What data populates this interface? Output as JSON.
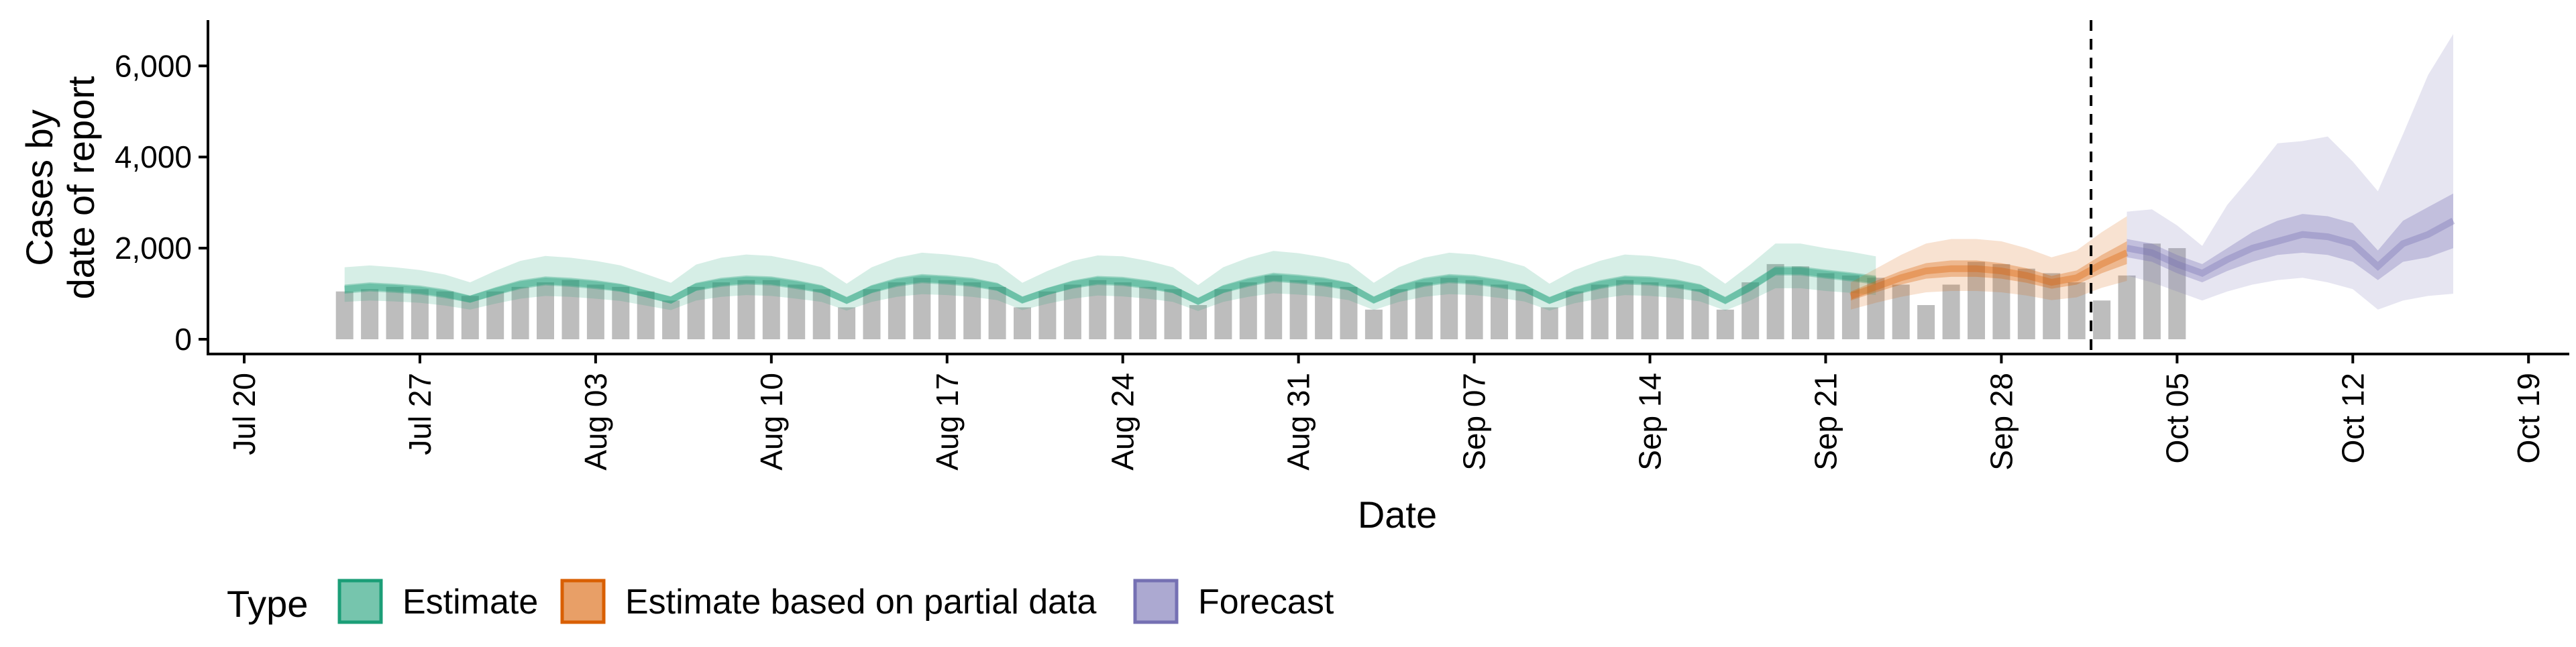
{
  "chart_data": {
    "type": "area",
    "xlabel": "Date",
    "ylabel": [
      "Cases by",
      "date of report"
    ],
    "ylim": [
      0,
      7000
    ],
    "xlim": [
      "2020-07-18",
      "2020-10-20"
    ],
    "y_ticks": [
      0,
      2000,
      4000,
      6000
    ],
    "y_tick_labels": [
      "0",
      "2,000",
      "4,000",
      "6,000"
    ],
    "x_ticks": [
      "2020-07-20",
      "2020-07-27",
      "2020-08-03",
      "2020-08-10",
      "2020-08-17",
      "2020-08-24",
      "2020-08-31",
      "2020-09-07",
      "2020-09-14",
      "2020-09-21",
      "2020-09-28",
      "2020-10-05",
      "2020-10-12",
      "2020-10-19"
    ],
    "x_tick_labels": [
      "Jul 20",
      "Jul 27",
      "Aug 03",
      "Aug 10",
      "Aug 17",
      "Aug 24",
      "Aug 31",
      "Sep 07",
      "Sep 14",
      "Sep 21",
      "Sep 28",
      "Oct 05",
      "Oct 12",
      "Oct 19"
    ],
    "forecast_date": "2020-10-02",
    "grid": false,
    "legend": {
      "title": "Type",
      "position": "bottom",
      "entries": [
        {
          "label": "Estimate",
          "color": "#1b9e77"
        },
        {
          "label": "Estimate based on partial data",
          "color": "#d95f02"
        },
        {
          "label": "Forecast",
          "color": "#7570b3"
        }
      ]
    },
    "reported_cases": {
      "color": "#bdbdbd",
      "start": "2020-07-24",
      "values": [
        1050,
        1100,
        1150,
        1100,
        1050,
        950,
        1050,
        1150,
        1250,
        1300,
        1200,
        1150,
        1050,
        850,
        1150,
        1250,
        1300,
        1300,
        1200,
        1100,
        700,
        1100,
        1250,
        1350,
        1300,
        1250,
        1150,
        700,
        1050,
        1200,
        1300,
        1250,
        1150,
        1100,
        750,
        1100,
        1250,
        1400,
        1300,
        1250,
        1150,
        650,
        1100,
        1250,
        1350,
        1300,
        1200,
        1100,
        700,
        1050,
        1200,
        1300,
        1250,
        1200,
        1100,
        650,
        1250,
        1650,
        1600,
        1450,
        1400,
        1350,
        1200,
        750,
        1200,
        1700,
        1650,
        1550,
        1450,
        1250,
        850,
        1400,
        2100,
        2000
      ]
    },
    "series": [
      {
        "name": "Estimate",
        "color": "#1b9e77",
        "start": "2020-07-24",
        "median": [
          1100,
          1150,
          1120,
          1080,
          1000,
          880,
          1050,
          1200,
          1280,
          1250,
          1200,
          1130,
          1000,
          860,
          1150,
          1250,
          1300,
          1280,
          1200,
          1100,
          850,
          1100,
          1250,
          1330,
          1300,
          1250,
          1150,
          860,
          1050,
          1200,
          1290,
          1270,
          1200,
          1100,
          830,
          1100,
          1250,
          1360,
          1320,
          1260,
          1160,
          860,
          1100,
          1250,
          1330,
          1300,
          1220,
          1120,
          850,
          1060,
          1200,
          1300,
          1280,
          1220,
          1120,
          850,
          1150,
          1500,
          1500,
          1430,
          1370,
          1300
        ],
        "inner_low": [
          1000,
          1050,
          1020,
          980,
          900,
          800,
          960,
          1100,
          1180,
          1150,
          1100,
          1040,
          920,
          780,
          1060,
          1150,
          1200,
          1180,
          1100,
          1010,
          780,
          1010,
          1150,
          1230,
          1200,
          1150,
          1060,
          790,
          970,
          1110,
          1190,
          1170,
          1100,
          1010,
          760,
          1010,
          1150,
          1260,
          1220,
          1160,
          1070,
          790,
          1010,
          1150,
          1230,
          1200,
          1120,
          1030,
          780,
          970,
          1100,
          1200,
          1180,
          1120,
          1030,
          780,
          1050,
          1400,
          1400,
          1330,
          1270,
          1200
        ],
        "inner_high": [
          1200,
          1250,
          1220,
          1180,
          1100,
          960,
          1140,
          1300,
          1380,
          1350,
          1300,
          1220,
          1080,
          940,
          1240,
          1350,
          1400,
          1380,
          1300,
          1190,
          920,
          1190,
          1350,
          1430,
          1400,
          1350,
          1240,
          930,
          1130,
          1290,
          1390,
          1370,
          1300,
          1190,
          900,
          1190,
          1350,
          1460,
          1420,
          1360,
          1250,
          930,
          1190,
          1350,
          1430,
          1400,
          1320,
          1210,
          920,
          1150,
          1300,
          1400,
          1380,
          1320,
          1210,
          920,
          1250,
          1600,
          1600,
          1530,
          1470,
          1400
        ],
        "outer_low": [
          820,
          850,
          830,
          800,
          740,
          650,
          780,
          890,
          950,
          930,
          890,
          840,
          740,
          640,
          850,
          930,
          970,
          950,
          890,
          820,
          630,
          820,
          930,
          990,
          970,
          930,
          860,
          640,
          780,
          890,
          960,
          940,
          890,
          820,
          620,
          820,
          930,
          1010,
          980,
          940,
          860,
          640,
          820,
          930,
          990,
          970,
          910,
          830,
          630,
          790,
          890,
          970,
          950,
          910,
          830,
          630,
          850,
          1120,
          1120,
          1060,
          1020,
          970
        ],
        "outer_high": [
          1580,
          1620,
          1580,
          1520,
          1420,
          1250,
          1500,
          1720,
          1830,
          1790,
          1720,
          1620,
          1430,
          1240,
          1640,
          1790,
          1860,
          1830,
          1720,
          1580,
          1220,
          1580,
          1790,
          1900,
          1860,
          1790,
          1650,
          1240,
          1500,
          1720,
          1840,
          1820,
          1720,
          1580,
          1190,
          1580,
          1790,
          1940,
          1890,
          1800,
          1660,
          1240,
          1580,
          1790,
          1900,
          1860,
          1750,
          1600,
          1220,
          1520,
          1720,
          1860,
          1830,
          1750,
          1600,
          1220,
          1640,
          2100,
          2100,
          2000,
          1920,
          1820
        ]
      },
      {
        "name": "Estimate based on partial data",
        "color": "#d95f02",
        "start": "2020-09-22",
        "median": [
          950,
          1150,
          1350,
          1500,
          1550,
          1550,
          1500,
          1400,
          1250,
          1350,
          1650,
          1900
        ],
        "inner_low": [
          850,
          1030,
          1200,
          1330,
          1370,
          1370,
          1330,
          1240,
          1110,
          1200,
          1450,
          1650
        ],
        "inner_high": [
          1050,
          1280,
          1500,
          1670,
          1730,
          1730,
          1670,
          1560,
          1390,
          1510,
          1850,
          2150
        ],
        "outer_low": [
          650,
          800,
          930,
          1030,
          1060,
          1060,
          1030,
          960,
          860,
          920,
          1130,
          1280
        ],
        "outer_high": [
          1250,
          1550,
          1850,
          2100,
          2200,
          2200,
          2150,
          2000,
          1800,
          1950,
          2350,
          2700
        ]
      },
      {
        "name": "Forecast",
        "color": "#7570b3",
        "start": "2020-10-03",
        "median": [
          2000,
          1900,
          1650,
          1450,
          1750,
          2000,
          2150,
          2300,
          2250,
          2100,
          1600,
          2100,
          2300,
          2600
        ],
        "inner_low": [
          1800,
          1700,
          1450,
          1250,
          1500,
          1700,
          1850,
          1900,
          1850,
          1700,
          1300,
          1700,
          1800,
          2000
        ],
        "inner_high": [
          2200,
          2100,
          1850,
          1650,
          2000,
          2350,
          2600,
          2750,
          2700,
          2550,
          1950,
          2600,
          2900,
          3200
        ],
        "outer_low": [
          1400,
          1250,
          1050,
          850,
          1050,
          1200,
          1300,
          1350,
          1250,
          1100,
          650,
          850,
          950,
          1000
        ],
        "outer_high": [
          2800,
          2850,
          2500,
          2050,
          2950,
          3600,
          4300,
          4350,
          4450,
          3900,
          3250,
          4500,
          5800,
          6700
        ]
      }
    ]
  }
}
